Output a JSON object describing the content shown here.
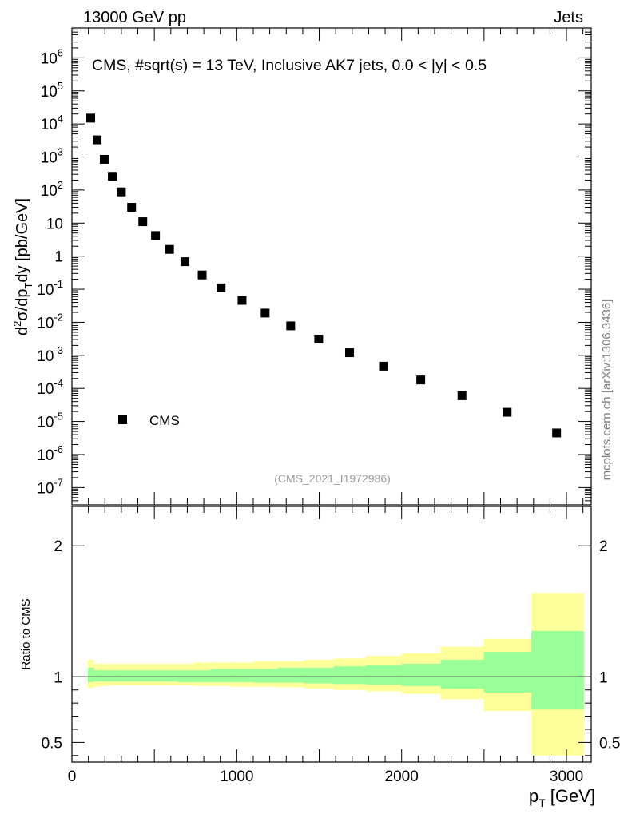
{
  "header": {
    "left": "13000 GeV pp",
    "right": "Jets"
  },
  "side_label": "mcplots.cern.ch [arXiv:1306.3436]",
  "analysis_id": "(CMS_2021_I1972986)",
  "colors": {
    "band_outer": "#ffff99",
    "band_inner": "#99ff99",
    "marker": "#000000",
    "analysis_text": "#999999",
    "side_text": "#808080"
  },
  "chart_data": [
    {
      "type": "scatter",
      "title": "CMS, #sqrt(s) = 13 TeV, Inclusive AK7 jets, 0.0 < |y| < 0.5",
      "xlabel": "p_T [GeV]",
      "ylabel": "d²σ/dp_T dy [pb/GeV]",
      "yscale": "log",
      "xlim": [
        0,
        3150
      ],
      "ylim": [
        3e-08,
        8000000.0
      ],
      "y_ticks": [
        {
          "v": 1e-07,
          "base": "10",
          "exp": "-7"
        },
        {
          "v": 1e-06,
          "base": "10",
          "exp": "-6"
        },
        {
          "v": 1e-05,
          "base": "10",
          "exp": "-5"
        },
        {
          "v": 0.0001,
          "base": "10",
          "exp": "-4"
        },
        {
          "v": 0.001,
          "base": "10",
          "exp": "-3"
        },
        {
          "v": 0.01,
          "base": "10",
          "exp": "-2"
        },
        {
          "v": 0.1,
          "base": "10",
          "exp": "-1"
        },
        {
          "v": 1,
          "base": "1",
          "exp": ""
        },
        {
          "v": 10,
          "base": "10",
          "exp": ""
        },
        {
          "v": 100,
          "base": "10",
          "exp": "2"
        },
        {
          "v": 1000,
          "base": "10",
          "exp": "3"
        },
        {
          "v": 10000,
          "base": "10",
          "exp": "4"
        },
        {
          "v": 100000,
          "base": "10",
          "exp": "5"
        },
        {
          "v": 1000000,
          "base": "10",
          "exp": "6"
        }
      ],
      "legend": {
        "label": "CMS",
        "position": "bottom-left"
      },
      "series": [
        {
          "name": "CMS",
          "x": [
            114,
            153,
            196,
            245,
            300,
            362,
            430,
            507,
            592,
            686,
            790,
            905,
            1032,
            1172,
            1327,
            1497,
            1684,
            1890,
            2116,
            2366,
            2640,
            2940
          ],
          "y": [
            15000,
            3300,
            850,
            260,
            88,
            30,
            11,
            4.2,
            1.6,
            0.68,
            0.27,
            0.11,
            0.046,
            0.019,
            0.0078,
            0.0031,
            0.0012,
            0.00047,
            0.00018,
            6e-05,
            1.9e-05,
            4.5e-06
          ]
        }
      ]
    },
    {
      "type": "area",
      "ylabel": "Ratio to CMS",
      "xlabel": "p_T [GeV]",
      "xlim": [
        0,
        3150
      ],
      "ylim": [
        0.35,
        2.3
      ],
      "x_ticks": [
        {
          "v": 0,
          "label": "0"
        },
        {
          "v": 1000,
          "label": "1000"
        },
        {
          "v": 2000,
          "label": "2000"
        },
        {
          "v": 3000,
          "label": "3000"
        }
      ],
      "y_ticks": [
        {
          "v": 0.5,
          "label": "0.5"
        },
        {
          "v": 1,
          "label": "1"
        },
        {
          "v": 2,
          "label": "2"
        }
      ],
      "reference_line": 1,
      "bins": [
        97,
        133,
        174,
        220,
        272,
        330,
        395,
        468,
        548,
        638,
        737,
        846,
        967,
        1101,
        1248,
        1410,
        1588,
        1784,
        2000,
        2238,
        2500,
        2787,
        3103
      ],
      "outer_lo": [
        0.915,
        0.925,
        0.93,
        0.935,
        0.935,
        0.935,
        0.935,
        0.935,
        0.935,
        0.935,
        0.93,
        0.93,
        0.925,
        0.925,
        0.92,
        0.91,
        0.9,
        0.89,
        0.87,
        0.83,
        0.74,
        0.4
      ],
      "outer_hi": [
        1.13,
        1.1,
        1.1,
        1.1,
        1.1,
        1.1,
        1.1,
        1.1,
        1.1,
        1.1,
        1.11,
        1.11,
        1.11,
        1.12,
        1.12,
        1.13,
        1.14,
        1.16,
        1.18,
        1.23,
        1.29,
        1.64
      ],
      "inner_lo": [
        0.96,
        0.965,
        0.965,
        0.965,
        0.965,
        0.965,
        0.965,
        0.965,
        0.965,
        0.96,
        0.96,
        0.96,
        0.96,
        0.955,
        0.955,
        0.95,
        0.945,
        0.94,
        0.93,
        0.91,
        0.88,
        0.75
      ],
      "inner_hi": [
        1.07,
        1.05,
        1.05,
        1.05,
        1.05,
        1.05,
        1.05,
        1.05,
        1.05,
        1.05,
        1.05,
        1.06,
        1.06,
        1.06,
        1.07,
        1.07,
        1.08,
        1.09,
        1.1,
        1.13,
        1.19,
        1.35
      ]
    }
  ]
}
